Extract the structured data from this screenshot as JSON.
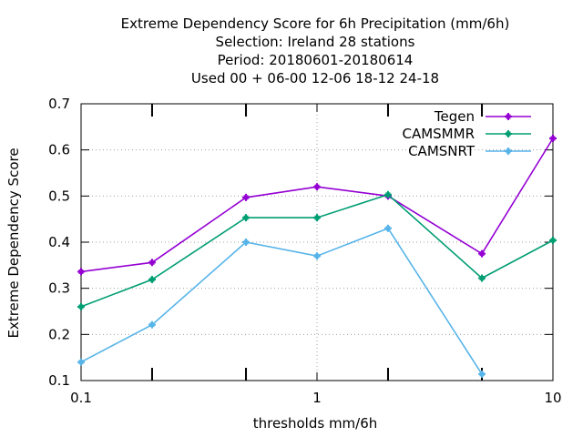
{
  "chart_data": {
    "type": "line",
    "title_lines": [
      "Extreme Dependency Score  for 6h Precipitation (mm/6h)",
      "Selection: Ireland      28 stations",
      "Period: 20180601-20180614",
      "Used  00 + 06-00 12-06 18-12 24-18"
    ],
    "xlabel": "thresholds mm/6h",
    "ylabel": "Extreme Dependency Score",
    "x_scale": "log",
    "xlim": [
      0.1,
      10
    ],
    "ylim": [
      0.1,
      0.7
    ],
    "x_ticks": [
      {
        "value": 0.1,
        "label": "0.1"
      },
      {
        "value": 1,
        "label": "1"
      },
      {
        "value": 10,
        "label": "10"
      }
    ],
    "x_minor_ticks": [
      0.2,
      0.5,
      2,
      5
    ],
    "y_ticks": [
      {
        "value": 0.1,
        "label": "0.1"
      },
      {
        "value": 0.2,
        "label": "0.2"
      },
      {
        "value": 0.3,
        "label": "0.3"
      },
      {
        "value": 0.4,
        "label": "0.4"
      },
      {
        "value": 0.5,
        "label": "0.5"
      },
      {
        "value": 0.6,
        "label": "0.6"
      },
      {
        "value": 0.7,
        "label": "0.7"
      }
    ],
    "grid": true,
    "legend_position": "top-right",
    "series": [
      {
        "name": "Tegen",
        "color": "#9400d3",
        "x": [
          0.1,
          0.2,
          0.5,
          1,
          2,
          5,
          10
        ],
        "y": [
          0.336,
          0.356,
          0.497,
          0.52,
          0.5,
          0.375,
          0.625
        ]
      },
      {
        "name": "CAMSMMR",
        "color": "#009e73",
        "x": [
          0.1,
          0.2,
          0.5,
          1,
          2,
          5,
          10
        ],
        "y": [
          0.26,
          0.319,
          0.453,
          0.453,
          0.503,
          0.322,
          0.404
        ]
      },
      {
        "name": "CAMSNRT",
        "color": "#56b4e9",
        "x": [
          0.1,
          0.2,
          0.5,
          1,
          2,
          5
        ],
        "y": [
          0.14,
          0.221,
          0.4,
          0.37,
          0.43,
          0.114
        ]
      }
    ]
  }
}
